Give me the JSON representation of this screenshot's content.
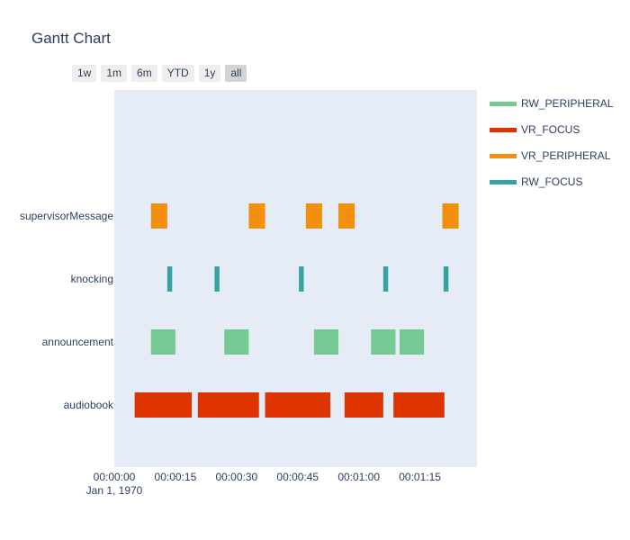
{
  "title": "Gantt Chart",
  "range_buttons": [
    {
      "label": "1w",
      "active": false
    },
    {
      "label": "1m",
      "active": false
    },
    {
      "label": "6m",
      "active": false
    },
    {
      "label": "YTD",
      "active": false
    },
    {
      "label": "1y",
      "active": false
    },
    {
      "label": "all",
      "active": true
    }
  ],
  "chart_data": {
    "type": "bar",
    "orientation": "horizontal-gantt",
    "categories": [
      "audiobook",
      "announcement",
      "knocking",
      "supervisorMessage"
    ],
    "x_tick_labels": [
      "00:00:00",
      "00:00:15",
      "00:00:30",
      "00:00:45",
      "00:01:00",
      "00:01:15"
    ],
    "x_tick_seconds": [
      0,
      15,
      30,
      45,
      60,
      75
    ],
    "x_date_label": "Jan 1, 1970",
    "xlim_seconds": [
      0,
      89
    ],
    "grid": false,
    "legend_position": "right",
    "series": [
      {
        "name": "RW_PERIPHERAL",
        "color": "#77c993",
        "category": "announcement",
        "tasks": [
          [
            9,
            15
          ],
          [
            27,
            33
          ],
          [
            49,
            55
          ],
          [
            63,
            69
          ],
          [
            70,
            76
          ]
        ]
      },
      {
        "name": "VR_FOCUS",
        "color": "#dd3300",
        "category": "audiobook",
        "tasks": [
          [
            5,
            19
          ],
          [
            20.5,
            35.5
          ],
          [
            37,
            53
          ],
          [
            56.5,
            66
          ],
          [
            68.5,
            81
          ]
        ]
      },
      {
        "name": "VR_PERIPHERAL",
        "color": "#f28f0d",
        "category": "supervisorMessage",
        "tasks": [
          [
            9,
            13
          ],
          [
            33,
            37
          ],
          [
            47,
            51
          ],
          [
            55,
            59
          ],
          [
            80.5,
            84.5
          ]
        ]
      },
      {
        "name": "RW_FOCUS",
        "color": "#36a3a3",
        "category": "knocking",
        "tasks": [
          [
            13,
            14.2
          ],
          [
            24.6,
            25.8
          ],
          [
            45.3,
            46.5
          ],
          [
            66,
            67.2
          ],
          [
            80.8,
            82
          ]
        ]
      }
    ]
  }
}
